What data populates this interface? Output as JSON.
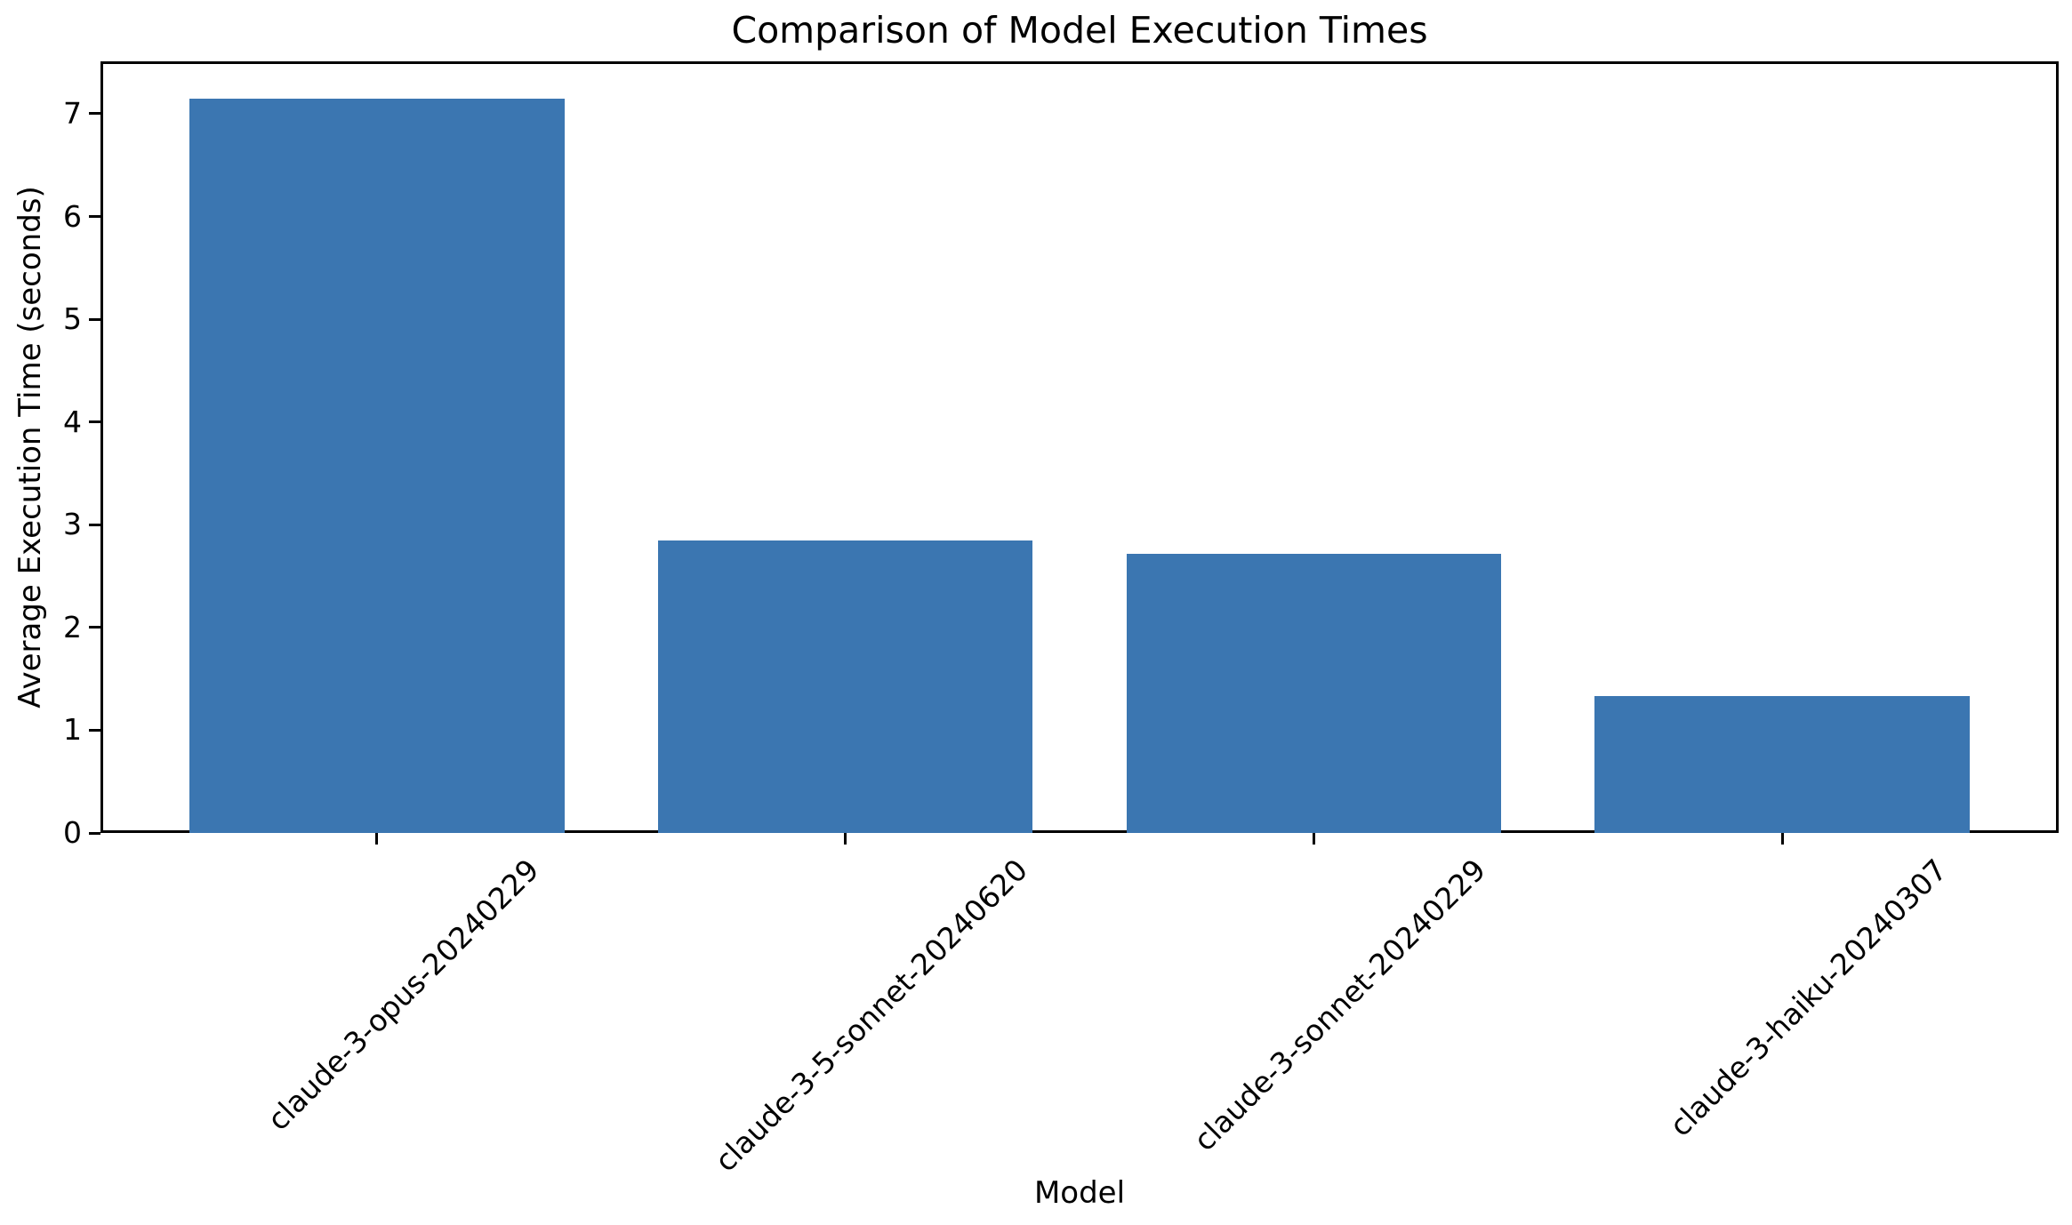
{
  "figure": {
    "background_color": "#ffffff",
    "bar_color": "#3b76b1",
    "axis_color": "#000000",
    "text_color": "#000000"
  },
  "chart_data": {
    "type": "bar",
    "title": "Comparison of Model Execution Times",
    "xlabel": "Model",
    "ylabel": "Average Execution Time (seconds)",
    "categories": [
      "claude-3-opus-20240229",
      "claude-3-5-sonnet-20240620",
      "claude-3-sonnet-20240229",
      "claude-3-haiku-20240307"
    ],
    "values": [
      7.15,
      2.85,
      2.72,
      1.33
    ],
    "yticks": [
      0,
      1,
      2,
      3,
      4,
      5,
      6,
      7
    ],
    "ylim": [
      0,
      7.51
    ],
    "xlim": [
      -0.59,
      3.59
    ],
    "bar_width_fraction": 0.8,
    "tick_label_rotation_deg": 45,
    "grid": false,
    "legend": null
  }
}
